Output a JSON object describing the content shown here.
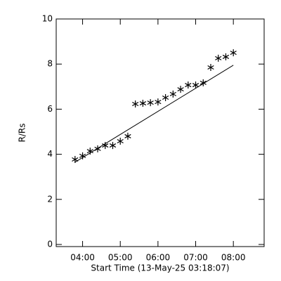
{
  "chart_data": {
    "type": "scatter",
    "xlabel": "Start Time (13-May-25 03:18:07)",
    "ylabel": "R/Rs",
    "x": [
      "03:48",
      "04:00",
      "04:12",
      "04:24",
      "04:36",
      "04:48",
      "05:00",
      "05:12",
      "05:24",
      "05:36",
      "05:48",
      "06:00",
      "06:12",
      "06:24",
      "06:36",
      "06:48",
      "07:00",
      "07:12",
      "07:24",
      "07:36",
      "07:48",
      "08:00"
    ],
    "values": [
      3.77,
      3.93,
      4.14,
      4.24,
      4.39,
      4.39,
      4.58,
      4.8,
      6.23,
      6.26,
      6.29,
      6.32,
      6.51,
      6.67,
      6.88,
      7.07,
      7.07,
      7.17,
      7.85,
      8.26,
      8.32,
      8.5
    ],
    "fit": {
      "x": [
        "03:48",
        "08:00"
      ],
      "values": [
        3.65,
        7.95
      ]
    },
    "color": "#000000",
    "xlim": [
      "03:18",
      "08:49"
    ],
    "xticks": [
      "04:00",
      "05:00",
      "06:00",
      "07:00",
      "08:00"
    ],
    "ylim": [
      0,
      10
    ],
    "yticks": [
      0,
      2,
      4,
      6,
      8,
      10
    ]
  }
}
